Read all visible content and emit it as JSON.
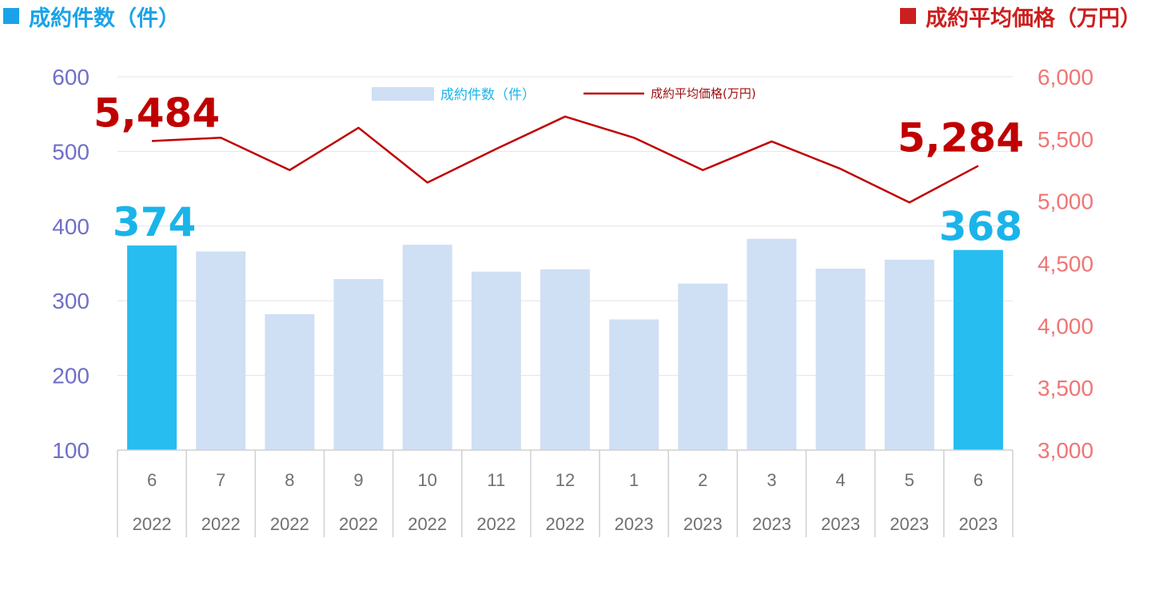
{
  "header": {
    "left_title": "成約件数（件）",
    "right_title": "成約平均価格（万円）"
  },
  "chart_data": {
    "type": "bar",
    "categories": [
      "6",
      "7",
      "8",
      "9",
      "10",
      "11",
      "12",
      "1",
      "2",
      "3",
      "4",
      "5",
      "6"
    ],
    "category_years": [
      "2022",
      "2022",
      "2022",
      "2022",
      "2022",
      "2022",
      "2022",
      "2023",
      "2023",
      "2023",
      "2023",
      "2023",
      "2023"
    ],
    "series": [
      {
        "name": "成約件数（件）",
        "type": "bar",
        "axis": "left",
        "values": [
          374,
          366,
          282,
          329,
          375,
          339,
          342,
          275,
          323,
          383,
          343,
          355,
          368
        ],
        "color": "#cfdff4",
        "highlight_color": "#27bdf0",
        "highlight_indices": [
          0,
          12
        ]
      },
      {
        "name": "成約平均価格(万円)",
        "type": "line",
        "axis": "right",
        "values": [
          5484,
          5510,
          5250,
          5590,
          5150,
          5420,
          5680,
          5510,
          5250,
          5480,
          5260,
          4990,
          5284
        ],
        "color": "#c00000"
      }
    ],
    "left_axis": {
      "ylim": [
        100,
        600
      ],
      "ticks": [
        "100",
        "200",
        "300",
        "400",
        "500",
        "600"
      ],
      "color": "#6f6fc8"
    },
    "right_axis": {
      "ylim": [
        3000,
        6000
      ],
      "ticks": [
        "3,000",
        "3,500",
        "4,000",
        "4,500",
        "5,000",
        "5,500",
        "6,000"
      ],
      "color": "#f07575"
    },
    "data_labels": [
      {
        "series": 0,
        "index": 0,
        "text": "374"
      },
      {
        "series": 0,
        "index": 12,
        "text": "368"
      },
      {
        "series": 1,
        "index": 0,
        "text": "5,484"
      },
      {
        "series": 1,
        "index": 12,
        "text": "5,284"
      }
    ],
    "legend": {
      "position": "top-center",
      "entries": [
        "成約件数（件）",
        "成約平均価格(万円)"
      ]
    },
    "grid": true
  }
}
